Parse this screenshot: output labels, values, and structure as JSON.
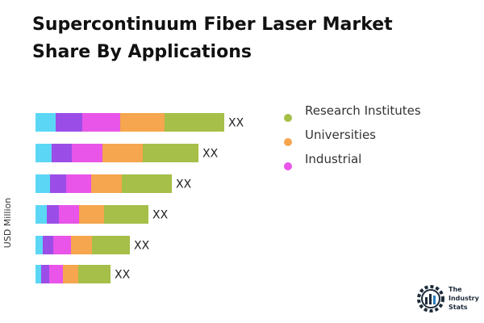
{
  "title": "Supercontinuum Fiber Laser Market Share By Applications",
  "chart_data": {
    "type": "bar",
    "orientation": "horizontal",
    "stacked": true,
    "ylabel": "USD Million",
    "xlabel": "",
    "categories": [
      "",
      "",
      "",
      "",
      "",
      ""
    ],
    "data_labels": [
      "XX",
      "XX",
      "XX",
      "XX",
      "XX",
      "XX"
    ],
    "series": [
      {
        "name": "",
        "color": "#5bd7f5",
        "values": [
          25,
          20,
          18,
          14,
          9,
          7
        ]
      },
      {
        "name": "",
        "color": "#9b4de8",
        "values": [
          33,
          25,
          20,
          15,
          13,
          10
        ]
      },
      {
        "name": "Industrial",
        "color": "#e855e8",
        "values": [
          47,
          38,
          31,
          25,
          22,
          17
        ]
      },
      {
        "name": "Universities",
        "color": "#f5a64e",
        "values": [
          55,
          50,
          38,
          31,
          26,
          19
        ]
      },
      {
        "name": "Research Institutes",
        "color": "#a5bf48",
        "values": [
          74,
          69,
          62,
          55,
          47,
          40
        ]
      }
    ],
    "grid": false,
    "legend_position": "right"
  },
  "legend": [
    {
      "label": "Research Institutes",
      "color": "#a5bf48"
    },
    {
      "label": "Universities",
      "color": "#f5a64e"
    },
    {
      "label": "Industrial",
      "color": "#e855e8"
    }
  ],
  "logo": {
    "line1": "The",
    "line2": "Industry",
    "line3": "Stats"
  }
}
